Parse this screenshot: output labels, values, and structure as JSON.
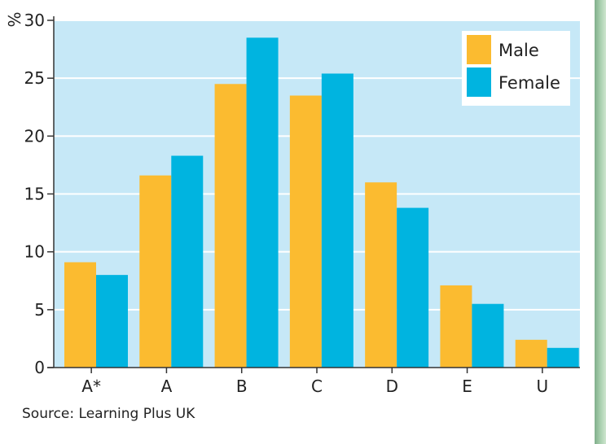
{
  "chart_data": {
    "type": "bar",
    "title": "",
    "xlabel": "",
    "ylabel": "%",
    "ylim": [
      0,
      30
    ],
    "yticks": [
      0,
      5,
      10,
      15,
      20,
      25,
      30
    ],
    "categories": [
      "A*",
      "A",
      "B",
      "C",
      "D",
      "E",
      "U"
    ],
    "series": [
      {
        "name": "Male",
        "color": "#fbbb30",
        "values": [
          9.1,
          16.6,
          24.5,
          23.5,
          16.0,
          7.1,
          2.4
        ]
      },
      {
        "name": "Female",
        "color": "#00b4e0",
        "values": [
          8.0,
          18.3,
          28.5,
          25.4,
          13.8,
          5.5,
          1.7
        ]
      }
    ],
    "grid": true,
    "legend": "top-right",
    "plot_background": "#c6e8f7",
    "source": "Source: Learning Plus UK"
  }
}
